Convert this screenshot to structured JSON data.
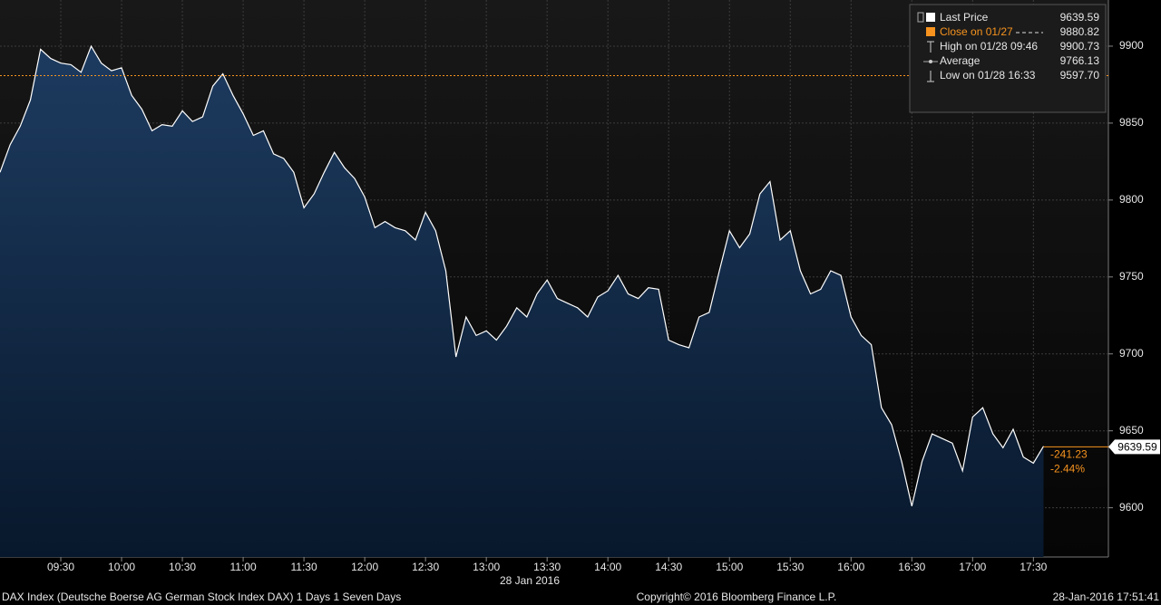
{
  "chart_data": {
    "type": "area",
    "x": [
      540,
      545,
      550,
      555,
      560,
      565,
      570,
      575,
      580,
      585,
      590,
      595,
      600,
      605,
      610,
      615,
      620,
      625,
      630,
      635,
      640,
      645,
      650,
      655,
      660,
      665,
      670,
      675,
      680,
      685,
      690,
      695,
      700,
      705,
      710,
      715,
      720,
      725,
      730,
      735,
      740,
      745,
      750,
      755,
      760,
      765,
      770,
      775,
      780,
      785,
      790,
      795,
      800,
      805,
      810,
      815,
      820,
      825,
      830,
      835,
      840,
      845,
      850,
      855,
      860,
      865,
      870,
      875,
      880,
      885,
      890,
      895,
      900,
      905,
      910,
      915,
      920,
      925,
      930,
      935,
      940,
      945,
      950,
      955,
      960,
      965,
      970,
      975,
      980,
      985,
      990,
      995,
      1000,
      1005,
      1010,
      1015,
      1020,
      1025,
      1030,
      1035,
      1040,
      1045,
      1050,
      1055
    ],
    "series": [
      {
        "name": "Last Price",
        "color": "#ffffff",
        "values": [
          9818,
          9836,
          9848,
          9865,
          9898,
          9892,
          9889,
          9888,
          9883,
          9900,
          9889,
          9884,
          9886,
          9868,
          9859,
          9845,
          9849,
          9848,
          9858,
          9851,
          9854,
          9874,
          9882,
          9868,
          9856,
          9842,
          9845,
          9830,
          9827,
          9818,
          9795,
          9804,
          9818,
          9831,
          9821,
          9814,
          9802,
          9782,
          9786,
          9782,
          9780,
          9774,
          9792,
          9780,
          9754,
          9698,
          9724,
          9712,
          9715,
          9709,
          9718,
          9730,
          9724,
          9739,
          9748,
          9736,
          9733,
          9730,
          9724,
          9737,
          9741,
          9751,
          9739,
          9736,
          9743,
          9742,
          9709,
          9706,
          9704,
          9724,
          9727,
          9754,
          9780,
          9769,
          9778,
          9804,
          9812,
          9774,
          9780,
          9754,
          9739,
          9742,
          9754,
          9751,
          9724,
          9712,
          9706,
          9665,
          9654,
          9630,
          9601,
          9630,
          9648,
          9645,
          9642,
          9624,
          9659,
          9665,
          9648,
          9639,
          9651,
          9633,
          9629,
          9640
        ]
      }
    ],
    "xlim": [
      540,
      1087
    ],
    "xticks": [
      {
        "value": 570,
        "label": "09:30"
      },
      {
        "value": 600,
        "label": "10:00"
      },
      {
        "value": 630,
        "label": "10:30"
      },
      {
        "value": 660,
        "label": "11:00"
      },
      {
        "value": 690,
        "label": "11:30"
      },
      {
        "value": 720,
        "label": "12:00"
      },
      {
        "value": 750,
        "label": "12:30"
      },
      {
        "value": 780,
        "label": "13:00"
      },
      {
        "value": 810,
        "label": "13:30"
      },
      {
        "value": 840,
        "label": "14:00"
      },
      {
        "value": 870,
        "label": "14:30"
      },
      {
        "value": 900,
        "label": "15:00"
      },
      {
        "value": 930,
        "label": "15:30"
      },
      {
        "value": 960,
        "label": "16:00"
      },
      {
        "value": 990,
        "label": "16:30"
      },
      {
        "value": 1020,
        "label": "17:00"
      },
      {
        "value": 1050,
        "label": "17:30"
      }
    ],
    "xlabel": "28 Jan 2016",
    "ylim": [
      9568,
      9930
    ],
    "yticks": [
      9600,
      9650,
      9700,
      9750,
      9800,
      9850,
      9900
    ],
    "grid": true,
    "legend_position": "upper right",
    "stats": [
      {
        "name": "Last Price",
        "value": 9639.59
      },
      {
        "name": "Close on 01/27",
        "value": 9880.82,
        "color": "#f7931e"
      },
      {
        "name": "High on 01/28 09:46",
        "value": 9900.73
      },
      {
        "name": "Average",
        "value": 9766.13
      },
      {
        "name": "Low on 01/28 16:33",
        "value": 9597.7,
        "value_label": "9597.70"
      }
    ],
    "change": -241.23,
    "change_pct": {
      "value": -2.44,
      "label": "-2.44%"
    },
    "footer_left": "DAX Index (Deutsche Boerse AG German Stock Index DAX) 1 Days 1 Seven Days",
    "footer_center": "Copyright© 2016 Bloomberg Finance L.P.",
    "footer_right": "28-Jan-2016 17:51:41"
  }
}
